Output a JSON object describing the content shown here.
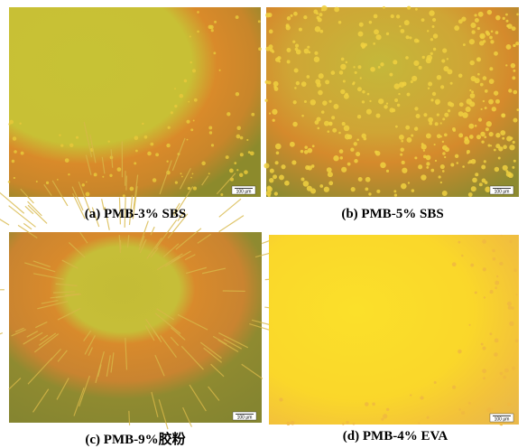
{
  "panels": [
    {
      "caption": "(a) PMB-3% SBS",
      "scale_bar": "100 μm"
    },
    {
      "caption": "(b) PMB-5% SBS",
      "scale_bar": "100 μm"
    },
    {
      "caption": "(c) PMB-9%胶粉",
      "scale_bar": "100 μm"
    },
    {
      "caption": "(d) PMB-4% EVA",
      "scale_bar": "100 μm"
    }
  ]
}
